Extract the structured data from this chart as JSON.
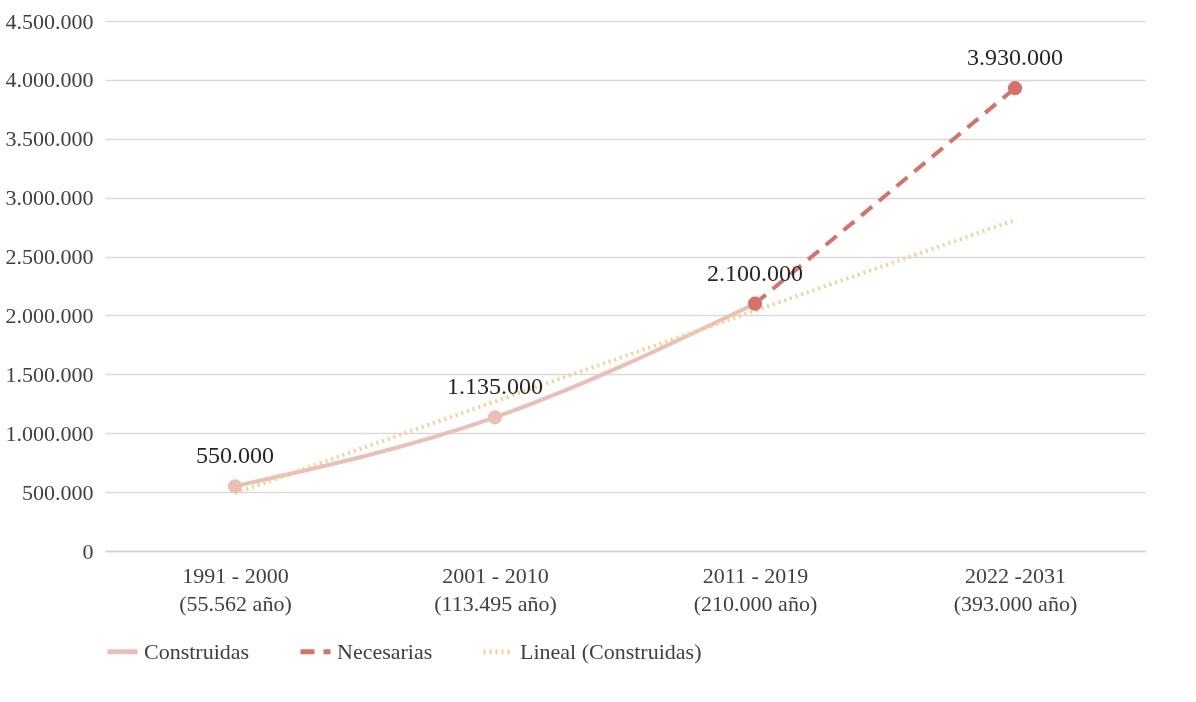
{
  "chart_data": {
    "type": "line",
    "categories": [
      "1991 - 2000\n(55.562 año)",
      "2001 - 2010\n(113.495 año)",
      "2011 - 2019\n(210.000 año)",
      "2022 -2031\n(393.000 año)"
    ],
    "series": [
      {
        "name": "Construidas",
        "color": "#ebbfb6",
        "marker": "circle",
        "line_style": "solid",
        "values": [
          550000,
          1135000,
          2100000,
          null
        ],
        "value_labels": [
          "550.000",
          "1.135.000",
          "2.100.000",
          null
        ]
      },
      {
        "name": "Necesarias",
        "color": "#d6726a",
        "marker": "circle",
        "line_style": "dashed",
        "values": [
          null,
          null,
          2100000,
          3930000
        ],
        "value_labels": [
          null,
          null,
          null,
          "3.930.000"
        ]
      },
      {
        "name": "Lineal (Construidas)",
        "color": "#f5cf8c",
        "marker": "none",
        "line_style": "dotted",
        "values": [
          490000,
          1270000,
          2040000,
          2810000
        ]
      }
    ],
    "ylim": [
      0,
      4500000
    ],
    "yticks": [
      0,
      {
        "value": 500000,
        "label": "500.000"
      },
      {
        "value": 1000000,
        "label": "1.000.000"
      },
      {
        "value": 1500000,
        "label": "1.500.000"
      },
      {
        "value": 2000000,
        "label": "2.000.000"
      },
      {
        "value": 2500000,
        "label": "2.500.000"
      },
      {
        "value": 3000000,
        "label": "3.000.000"
      },
      {
        "value": 3500000,
        "label": "3.500.000"
      },
      {
        "value": 4000000,
        "label": "4.000.000"
      },
      {
        "value": 4500000,
        "label": "4.500.000"
      }
    ],
    "grid": "y",
    "legend": "bottom"
  }
}
